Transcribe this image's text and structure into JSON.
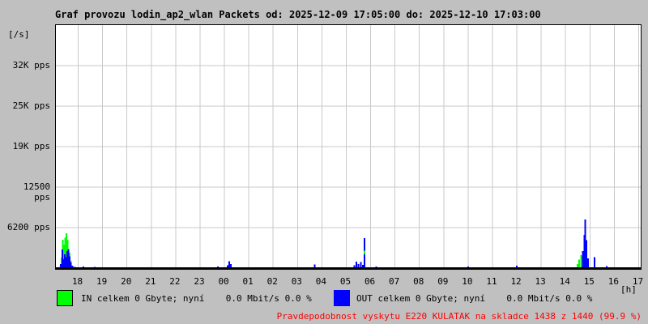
{
  "window": {
    "background": "#c0c0c0"
  },
  "header": {
    "title": "Graf provozu lodin_ap2_wlan Packets od: 2025-12-09 17:05:00 do: 2025-12-10 17:03:00"
  },
  "axes": {
    "y_unit": "[/s]",
    "x_unit": "[h]"
  },
  "legend": {
    "in": {
      "label": "IN celkem 0 Gbyte; nyní    0.0 Mbit/s 0.0 %",
      "color": "#00ff00"
    },
    "out": {
      "label": "OUT celkem 0 Gbyte; nyní    0.0 Mbit/s 0.0 %",
      "color": "#0000ff"
    }
  },
  "status": {
    "text": "Pravdepodobnost vyskytu E220 KULATAK na skladce 1438 z 1440 (99.9 %)",
    "color": "#ff0000"
  },
  "chart_data": {
    "type": "area",
    "title": "Graf provozu lodin_ap2_wlan Packets od: 2025-12-09 17:05:00 do: 2025-12-10 17:03:00",
    "time_start": "2025-12-09 17:05:00",
    "time_end": "2025-12-10 17:03:00",
    "hours_span": 24,
    "x_tick_labels": [
      "18",
      "19",
      "20",
      "21",
      "22",
      "23",
      "00",
      "01",
      "02",
      "03",
      "04",
      "05",
      "06",
      "07",
      "08",
      "09",
      "10",
      "11",
      "12",
      "13",
      "14",
      "15",
      "16",
      "17"
    ],
    "x_first_tick_offset_hours": 0.9167,
    "ylim": [
      0,
      37500
    ],
    "grid": true,
    "grid_color": "#c9c9c9",
    "y_unit_label": "[/s]",
    "x_unit_label": "[h]",
    "y_ticks": [
      {
        "label": "32K pps",
        "value": 31250
      },
      {
        "label": "25K pps",
        "value": 25000
      },
      {
        "label": "19K pps",
        "value": 18750
      },
      {
        "label": "12500 pps",
        "value": 12500
      },
      {
        "label": "6200 pps",
        "value": 6250
      }
    ],
    "series": [
      {
        "name": "IN",
        "color": "#00ff00",
        "points": [
          [
            0.18,
            300
          ],
          [
            0.23,
            1600
          ],
          [
            0.28,
            4400
          ],
          [
            0.33,
            3600
          ],
          [
            0.38,
            4700
          ],
          [
            0.43,
            5400
          ],
          [
            0.48,
            4400
          ],
          [
            0.52,
            3000
          ],
          [
            0.57,
            2400
          ],
          [
            0.62,
            1100
          ],
          [
            0.68,
            400
          ],
          [
            0.75,
            150
          ],
          [
            21.4,
            600
          ],
          [
            21.48,
            1300
          ],
          [
            21.55,
            2000
          ],
          [
            21.62,
            2400
          ],
          [
            21.68,
            2000
          ],
          [
            21.74,
            1300
          ],
          [
            21.8,
            500
          ]
        ]
      },
      {
        "name": "OUT",
        "color": "#0000ff",
        "points": [
          [
            0.2,
            600
          ],
          [
            0.26,
            2900
          ],
          [
            0.31,
            1400
          ],
          [
            0.36,
            2100
          ],
          [
            0.41,
            1700
          ],
          [
            0.46,
            2600
          ],
          [
            0.51,
            2900
          ],
          [
            0.56,
            1800
          ],
          [
            0.61,
            900
          ],
          [
            0.68,
            350
          ],
          [
            0.78,
            200
          ],
          [
            1.13,
            250
          ],
          [
            1.6,
            180
          ],
          [
            6.65,
            250
          ],
          [
            7.05,
            450
          ],
          [
            7.12,
            1050
          ],
          [
            7.18,
            600
          ],
          [
            10.62,
            550
          ],
          [
            12.25,
            450
          ],
          [
            12.33,
            1000
          ],
          [
            12.42,
            650
          ],
          [
            12.52,
            950
          ],
          [
            12.6,
            500
          ],
          [
            12.67,
            4600
          ],
          [
            13.15,
            250
          ],
          [
            16.92,
            250
          ],
          [
            18.92,
            400
          ],
          [
            21.63,
            2600
          ],
          [
            21.69,
            5100
          ],
          [
            21.73,
            7500
          ],
          [
            21.78,
            4300
          ],
          [
            21.84,
            1500
          ],
          [
            22.1,
            1700
          ],
          [
            22.6,
            300
          ]
        ]
      }
    ],
    "overlay_marks": [
      {
        "series": "IN",
        "t": 12.67,
        "from": 2100,
        "to": 2700
      }
    ]
  }
}
